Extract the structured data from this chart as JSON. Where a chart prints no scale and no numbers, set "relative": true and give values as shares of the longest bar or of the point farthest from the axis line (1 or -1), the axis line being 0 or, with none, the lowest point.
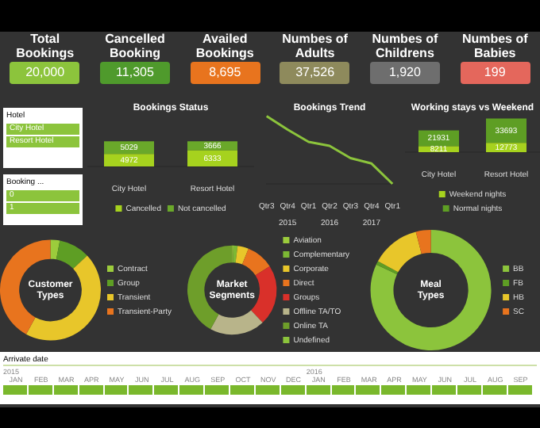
{
  "chart_data": [
    {
      "type": "other",
      "categories": [
        "Total Bookings",
        "Cancelled Booking",
        "Availed Bookings",
        "Numbes of Adults",
        "Numbes of Childrens",
        "Numbes of Babies"
      ],
      "value_labels": [
        "20,000",
        "11,305",
        "8,695",
        "37,526",
        "1,920",
        "199"
      ],
      "colors": [
        "#8cc43c",
        "#4f9a2c",
        "#e8741e",
        "#8e8a5c",
        "#6e6e6e",
        "#e4675c"
      ]
    },
    {
      "type": "other",
      "title": "Hotel",
      "annotations": [
        "City Hotel",
        "Resort Hotel"
      ]
    },
    {
      "type": "other",
      "title": "Booking ...",
      "annotations": [
        "0",
        "1"
      ]
    },
    {
      "type": "bar",
      "title": "Bookings Status",
      "stacked": true,
      "categories": [
        "City Hotel",
        "Resort Hotel"
      ],
      "legend": "bottom",
      "data_labels": true,
      "series": [
        {
          "name": "Cancelled",
          "color": "#a6d21e",
          "values": [
            4972,
            6333
          ]
        },
        {
          "name": "Not cancelled",
          "color": "#6aa82a",
          "values": [
            5029,
            3666
          ]
        }
      ]
    },
    {
      "type": "line",
      "title": "Bookings Trend",
      "relative": true,
      "marker": "none",
      "categories": [
        "Qtr3",
        "Qtr4",
        "Qtr1",
        "Qtr2",
        "Qtr3",
        "Qtr4",
        "Qtr1"
      ],
      "annotations": [
        "2015",
        "2016",
        "2017"
      ],
      "series": [
        {
          "color": "#8cc43c",
          "values": [
            1,
            0.8,
            0.62,
            0.56,
            0.38,
            0.3,
            0
          ]
        }
      ]
    },
    {
      "type": "bar",
      "title": "Working stays vs Weekend",
      "stacked": true,
      "categories": [
        "City Hotel",
        "Resort Hotel"
      ],
      "legend": "bottom",
      "data_labels": true,
      "series": [
        {
          "name": "Weekend nights",
          "color": "#a6d21e",
          "values": [
            8211,
            12773
          ]
        },
        {
          "name": "Normal nights",
          "color": "#5e9e24",
          "values": [
            21931,
            33693
          ]
        }
      ]
    },
    {
      "type": "donut",
      "title": "Customer Types",
      "legend": "right",
      "categories": [
        "Contract",
        "Group",
        "Transient",
        "Transient-Party"
      ],
      "values": [
        3,
        10,
        45,
        42
      ],
      "colors": [
        "#9ccc3c",
        "#5e9e24",
        "#e8c62a",
        "#e8741e"
      ]
    },
    {
      "type": "donut",
      "title": "Market Segments",
      "legend": "right",
      "categories": [
        "Aviation",
        "Complementary",
        "Corporate",
        "Direct",
        "Groups",
        "Offline TA/TO",
        "Online TA",
        "Undefined"
      ],
      "values": [
        0.5,
        1.5,
        4,
        10,
        22,
        20,
        42,
        0
      ],
      "colors": [
        "#9ccc3c",
        "#7cb834",
        "#e8c62a",
        "#e8741e",
        "#d9302a",
        "#b8b48a",
        "#6e9e2a",
        "#8cc43c"
      ]
    },
    {
      "type": "donut",
      "title": "Meal Types",
      "legend": "right",
      "categories": [
        "BB",
        "FB",
        "HB",
        "SC"
      ],
      "values": [
        82,
        1,
        13,
        4
      ],
      "colors": [
        "#8cc43c",
        "#5e9e24",
        "#e8c62a",
        "#e8741e"
      ]
    },
    {
      "type": "other",
      "title": "Arrivate date",
      "categories": [
        "JAN",
        "FEB",
        "MAR",
        "APR",
        "MAY",
        "JUN",
        "JUL",
        "AUG",
        "SEP",
        "OCT",
        "NOV",
        "DEC",
        "JAN",
        "FEB",
        "MAR",
        "APR",
        "MAY",
        "JUN",
        "JUL",
        "AUG",
        "SEP"
      ],
      "annotations": [
        "2015",
        "2016"
      ]
    }
  ]
}
